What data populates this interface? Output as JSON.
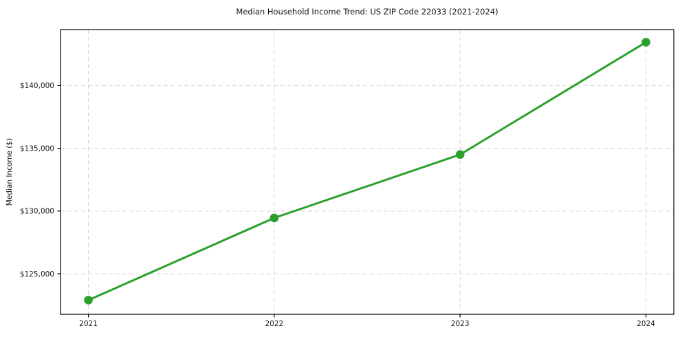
{
  "chart_data": {
    "type": "line",
    "title": "Median Household Income Trend: US ZIP Code 22033 (2021-2024)",
    "xlabel": "",
    "ylabel": "Median Income ($)",
    "x": [
      2021,
      2022,
      2023,
      2024
    ],
    "series": [
      {
        "values": [
          122900,
          129450,
          134500,
          143450
        ],
        "color": "#2ca02c"
      }
    ],
    "xticks": [
      {
        "value": 2021,
        "label": "2021"
      },
      {
        "value": 2022,
        "label": "2022"
      },
      {
        "value": 2023,
        "label": "2023"
      },
      {
        "value": 2024,
        "label": "2024"
      }
    ],
    "yticks": [
      {
        "value": 125000,
        "label": "$125,000"
      },
      {
        "value": 130000,
        "label": "$130,000"
      },
      {
        "value": 135000,
        "label": "$135,000"
      },
      {
        "value": 140000,
        "label": "$140,000"
      }
    ],
    "xlim": [
      2020.85,
      2024.15
    ],
    "ylim": [
      121770,
      144460
    ],
    "grid": true,
    "grid_style": "dashed",
    "legend": false,
    "colors": {
      "line": "#2ca02c",
      "marker": "#2ca02c",
      "grid": "#d5d5d5",
      "spine": "#000000",
      "tick_text": "#1a1a1a",
      "background": "#ffffff"
    }
  }
}
